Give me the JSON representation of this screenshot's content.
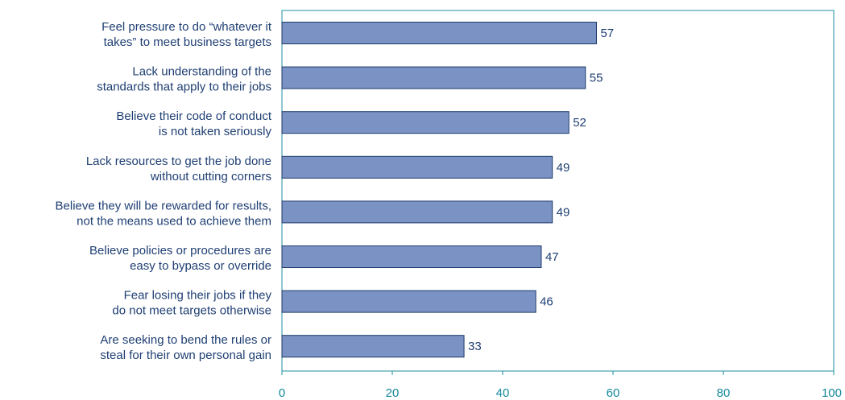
{
  "chart_data": {
    "type": "bar",
    "orientation": "horizontal",
    "categories": [
      [
        "Feel pressure to do “whatever it",
        "takes” to meet business targets"
      ],
      [
        "Lack understanding of the",
        "standards that apply to their jobs"
      ],
      [
        "Believe their code of conduct",
        "is not taken seriously"
      ],
      [
        "Lack resources to get the job done",
        "without cutting corners"
      ],
      [
        "Believe they will be rewarded for results,",
        "not the means used to achieve them"
      ],
      [
        "Believe policies or procedures are",
        "easy to bypass or override"
      ],
      [
        "Fear losing their jobs if they",
        "do not meet targets otherwise"
      ],
      [
        "Are seeking to bend the rules or",
        "steal for their own personal gain"
      ]
    ],
    "values": [
      57,
      55,
      52,
      49,
      49,
      47,
      46,
      33
    ],
    "xlim": [
      0,
      100
    ],
    "xticks": [
      0,
      20,
      40,
      60,
      80,
      100
    ],
    "title": "",
    "xlabel": "",
    "ylabel": "",
    "grid": false,
    "colors": {
      "bar_fill": "#7b93c4",
      "bar_stroke": "#1b3a6b",
      "frame": "#1e8fa0",
      "category_text": "#1f3f73",
      "value_text": "#2f6f9f",
      "tick_text": "#14889b"
    }
  }
}
